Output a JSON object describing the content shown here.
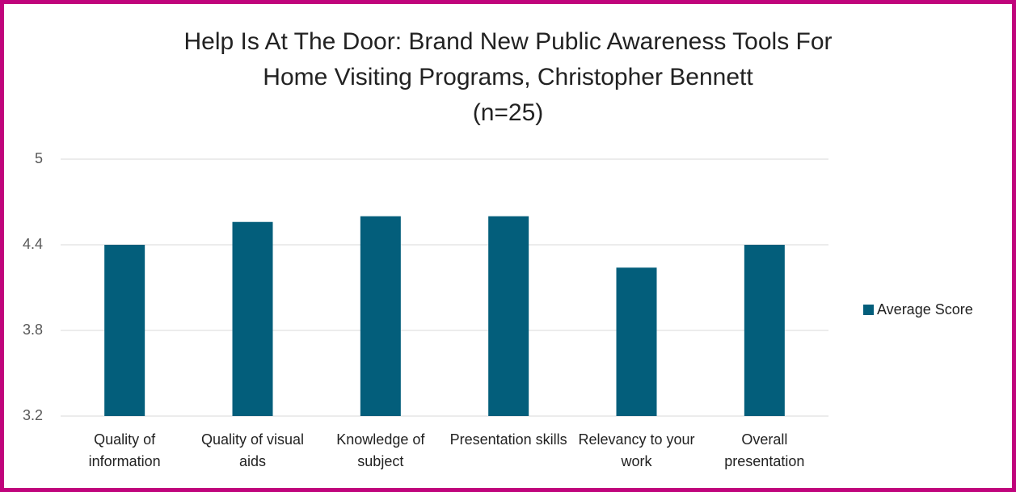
{
  "chart_data": {
    "type": "bar",
    "title": [
      "Help Is At The Door: Brand New Public Awareness Tools For",
      "Home Visiting Programs, Christopher Bennett",
      "(n=25)"
    ],
    "categories": [
      "Quality of information",
      "Quality of visual aids",
      "Knowledge of subject",
      "Presentation skills",
      "Relevancy to your work",
      "Overall presentation"
    ],
    "series": [
      {
        "name": "Average Score",
        "color": "#035e7b",
        "values": [
          4.4,
          4.56,
          4.6,
          4.6,
          4.24,
          4.4
        ]
      }
    ],
    "ylim": [
      3.2,
      5
    ],
    "yticks": [
      3.2,
      3.8,
      4.4,
      5
    ],
    "grid": true,
    "legend": "right"
  }
}
